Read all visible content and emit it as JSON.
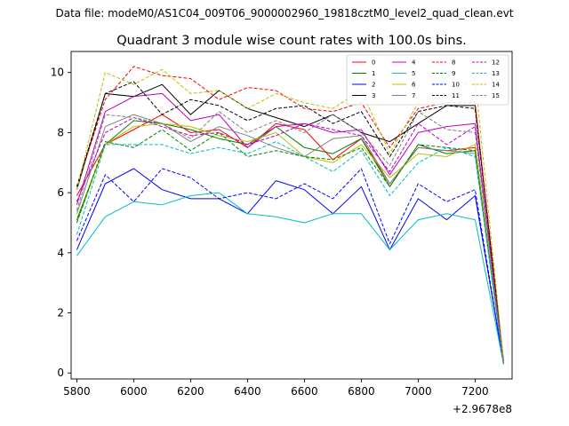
{
  "figure": {
    "suptitle": "Data file: modeM0/AS1C04_009T06_9000002960_19818cztM0_level2_quad_clean.evt"
  },
  "chart_data": {
    "type": "line",
    "title": "Quadrant 3 module wise count rates with 100.0s bins.",
    "xlabel": "",
    "ylabel": "",
    "x_offset_label": "+2.9678e8",
    "x": [
      5800,
      5900,
      6000,
      6100,
      6200,
      6300,
      6400,
      6500,
      6600,
      6700,
      6800,
      6900,
      7000,
      7100,
      7200,
      7300
    ],
    "xlim": [
      5780,
      7330
    ],
    "ylim": [
      -0.2,
      10.7
    ],
    "xticks": [
      5800,
      6000,
      6200,
      6400,
      6600,
      6800,
      7000,
      7200
    ],
    "yticks": [
      0,
      2,
      4,
      6,
      8,
      10
    ],
    "legend_position": "top-right",
    "series": [
      {
        "name": "0",
        "color": "#ff0000",
        "dash": "solid",
        "values": [
          5.9,
          7.6,
          8.1,
          8.6,
          8.0,
          8.1,
          7.5,
          8.3,
          8.1,
          7.1,
          7.8,
          6.3,
          7.5,
          7.4,
          7.5,
          0.3
        ]
      },
      {
        "name": "1",
        "color": "#008000",
        "dash": "solid",
        "values": [
          5.1,
          7.6,
          8.4,
          8.3,
          8.1,
          7.8,
          7.6,
          8.2,
          7.5,
          7.3,
          7.8,
          6.2,
          7.6,
          7.3,
          7.4,
          0.3
        ]
      },
      {
        "name": "2",
        "color": "#0000ff",
        "dash": "solid",
        "values": [
          4.1,
          6.3,
          6.8,
          6.1,
          5.8,
          5.8,
          5.3,
          6.4,
          6.1,
          5.3,
          6.2,
          4.1,
          5.8,
          5.1,
          5.9,
          0.3
        ]
      },
      {
        "name": "3",
        "color": "#000000",
        "dash": "solid",
        "values": [
          6.1,
          9.3,
          9.2,
          9.6,
          8.6,
          9.4,
          8.8,
          8.5,
          8.2,
          8.6,
          8.0,
          7.7,
          8.3,
          8.9,
          8.9,
          0.3
        ]
      },
      {
        "name": "4",
        "color": "#c000c0",
        "dash": "solid",
        "values": [
          5.6,
          8.7,
          9.2,
          9.3,
          8.4,
          8.6,
          7.5,
          8.2,
          8.3,
          8.0,
          8.1,
          6.6,
          8.0,
          8.2,
          8.3,
          0.3
        ]
      },
      {
        "name": "5",
        "color": "#00bfbf",
        "dash": "solid",
        "values": [
          3.9,
          5.2,
          5.7,
          5.6,
          5.9,
          6.0,
          5.3,
          5.2,
          5.0,
          5.3,
          5.3,
          4.1,
          5.1,
          5.3,
          5.1,
          0.3
        ]
      },
      {
        "name": "6",
        "color": "#bfbf00",
        "dash": "solid",
        "values": [
          5.0,
          7.6,
          8.2,
          8.3,
          8.2,
          7.9,
          7.7,
          8.0,
          7.2,
          7.0,
          7.6,
          6.5,
          7.3,
          7.2,
          7.6,
          0.3
        ]
      },
      {
        "name": "7",
        "color": "#808080",
        "dash": "solid",
        "values": [
          5.3,
          8.2,
          8.6,
          8.3,
          7.7,
          8.2,
          7.9,
          7.5,
          7.2,
          7.8,
          7.9,
          6.3,
          7.5,
          7.4,
          7.3,
          0.3
        ]
      },
      {
        "name": "8",
        "color": "#ff0000",
        "dash": "dashed",
        "values": [
          6.2,
          9.1,
          10.2,
          9.9,
          9.8,
          9.1,
          9.5,
          9.4,
          8.8,
          8.7,
          9.0,
          7.5,
          8.8,
          9.0,
          9.0,
          0.4
        ]
      },
      {
        "name": "9",
        "color": "#008000",
        "dash": "dashed",
        "values": [
          5.0,
          7.7,
          7.5,
          8.1,
          7.4,
          8.0,
          7.2,
          7.4,
          7.2,
          7.1,
          7.5,
          6.2,
          7.6,
          7.5,
          7.4,
          0.3
        ]
      },
      {
        "name": "10",
        "color": "#0000ff",
        "dash": "dashed",
        "values": [
          4.4,
          6.6,
          5.7,
          6.8,
          6.5,
          5.8,
          6.0,
          5.8,
          6.3,
          5.8,
          6.8,
          4.3,
          6.3,
          5.7,
          6.1,
          0.3
        ]
      },
      {
        "name": "11",
        "color": "#000000",
        "dash": "dashed",
        "values": [
          6.2,
          9.3,
          9.7,
          8.6,
          9.1,
          8.9,
          8.4,
          8.8,
          8.9,
          8.3,
          8.7,
          7.2,
          8.7,
          8.9,
          8.8,
          0.4
        ]
      },
      {
        "name": "12",
        "color": "#c000c0",
        "dash": "dashed",
        "values": [
          5.7,
          8.0,
          8.5,
          8.2,
          7.9,
          8.0,
          7.6,
          7.9,
          8.3,
          8.1,
          7.9,
          6.7,
          8.3,
          7.6,
          8.2,
          0.3
        ]
      },
      {
        "name": "13",
        "color": "#00bfbf",
        "dash": "dashed",
        "values": [
          4.6,
          7.6,
          7.6,
          7.6,
          7.3,
          7.5,
          7.3,
          7.7,
          7.2,
          6.7,
          7.4,
          5.9,
          7.0,
          7.5,
          7.2,
          0.3
        ]
      },
      {
        "name": "14",
        "color": "#bfbf00",
        "dash": "dashed",
        "values": [
          6.1,
          10.0,
          9.6,
          10.1,
          9.3,
          9.4,
          8.8,
          9.3,
          9.0,
          8.8,
          9.4,
          7.3,
          9.0,
          9.2,
          9.8,
          0.4
        ]
      },
      {
        "name": "15",
        "color": "#808080",
        "dash": "dashed",
        "values": [
          5.4,
          8.6,
          8.5,
          8.3,
          7.8,
          8.7,
          8.0,
          8.4,
          8.0,
          8.6,
          8.0,
          6.9,
          8.7,
          8.1,
          8.0,
          0.3
        ]
      }
    ]
  }
}
